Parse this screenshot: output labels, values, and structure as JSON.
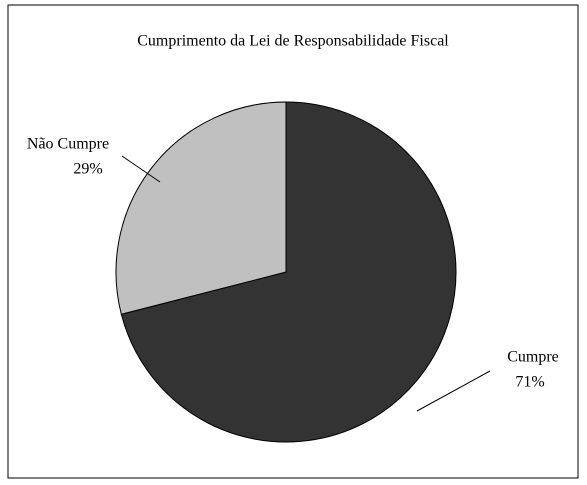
{
  "chart_data": {
    "type": "pie",
    "title": "Cumprimento da Lei de Responsabilidade Fiscal",
    "categories": [
      "Cumpre",
      "Não Cumpre"
    ],
    "values": [
      71,
      29
    ],
    "value_labels": [
      "71%",
      "29%"
    ],
    "colors": [
      "#333333",
      "#c0c0c0"
    ]
  }
}
